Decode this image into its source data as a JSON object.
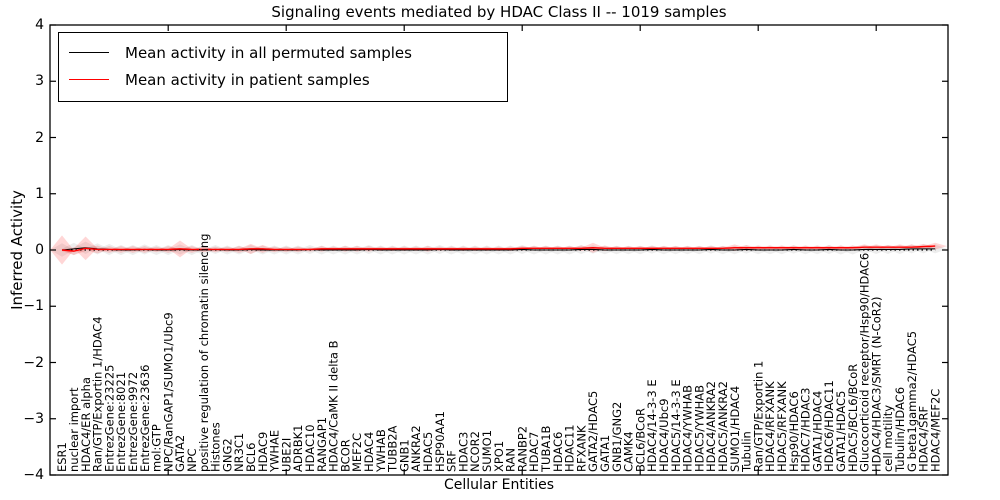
{
  "title": "Signaling events mediated by HDAC Class II -- 1019 samples",
  "legend": {
    "items": [
      {
        "label": "Mean activity in all permuted samples",
        "color": "#000000"
      },
      {
        "label": "Mean activity in patient samples",
        "color": "#ff0000"
      }
    ]
  },
  "axes": {
    "ylabel": "Inferred Activity",
    "xlabel": "Cellular Entities",
    "ytick_labels": [
      "4",
      "3",
      "2",
      "1",
      "0",
      "−1",
      "−2",
      "−3",
      "−4"
    ],
    "ytick_values": [
      4,
      3,
      2,
      1,
      0,
      -1,
      -2,
      -3,
      -4
    ]
  },
  "colors": {
    "permuted_line": "#000000",
    "patient_line": "#ff0000",
    "permuted_band": "rgba(0,0,0,0.07)",
    "patient_band": "rgba(255,0,0,0.16)",
    "frame": "#000000"
  },
  "chart_data": {
    "type": "line",
    "title": "Signaling events mediated by HDAC Class II -- 1019 samples",
    "xlabel": "Cellular Entities",
    "ylabel": "Inferred Activity",
    "ylim": [
      -4,
      4
    ],
    "grid": false,
    "legend_position": "upper left",
    "categories": [
      "ESR1",
      "nuclear import",
      "HDAC4/ER alpha",
      "Ran/GTP/Exportin 1/HDAC4",
      "EntrezGene:23225",
      "EntrezGene:8021",
      "EntrezGene:9972",
      "EntrezGene:23636",
      "mol:GTP",
      "NPC/RanGAP1/SUMO1/Ubc9",
      "GATA2",
      "NPC",
      "positive regulation of chromatin silencing",
      "Histones",
      "GNG2",
      "NR3C1",
      "BCL6",
      "HDAC9",
      "YWHAE",
      "UBE2I",
      "ADRBK1",
      "HDAC10",
      "RANGAP1",
      "HDAC4/CaMK II delta B",
      "BCOR",
      "MEF2C",
      "HDAC4",
      "YWHAB",
      "TUBB2A",
      "GNB1",
      "ANKRA2",
      "HDAC5",
      "HSP90AA1",
      "SRF",
      "HDAC3",
      "NCOR2",
      "SUMO1",
      "XPO1",
      "RAN",
      "RANBP2",
      "HDAC7",
      "TUBA1B",
      "HDAC6",
      "HDAC11",
      "RFXANK",
      "GATA2/HDAC5",
      "GATA1",
      "GNB1/GNG2",
      "CAMK4",
      "BCL6/BCoR",
      "HDAC4/14-3-3 E",
      "HDAC4/Ubc9",
      "HDAC5/14-3-3 E",
      "HDAC4/YWHAB",
      "HDAC5/YWHAB",
      "HDAC4/ANKRA2",
      "HDAC5/ANKRA2",
      "SUMO1/HDAC4",
      "Tubulin",
      "Ran/GTP/Exportin 1",
      "HDAC4/RFXANK",
      "HDAC5/RFXANK",
      "Hsp90/HDAC6",
      "HDAC7/HDAC3",
      "GATA1/HDAC4",
      "HDAC6/HDAC11",
      "GATA1/HDAC5",
      "HDAC5/BCL6/BCoR",
      "Glucocorticoid receptor/Hsp90/HDAC6",
      "HDAC4/HDAC3/SMRT (N-CoR2)",
      "cell motility",
      "Tubulin/HDAC6",
      "G beta1gamma2/HDAC5",
      "HDAC4/SRF",
      "HDAC4/MEF2C"
    ],
    "series": [
      {
        "name": "Mean activity in all permuted samples",
        "values": [
          0.0,
          0.02,
          0.04,
          0.02,
          0.01,
          0.0,
          0.0,
          0.01,
          0.0,
          0.0,
          0.01,
          0.0,
          0.0,
          0.01,
          0.0,
          0.0,
          0.01,
          0.0,
          0.0,
          0.0,
          0.0,
          0.01,
          0.0,
          0.0,
          0.0,
          0.0,
          0.01,
          0.0,
          0.0,
          0.0,
          0.0,
          0.0,
          0.01,
          0.0,
          0.0,
          0.0,
          0.0,
          0.0,
          0.0,
          0.01,
          0.0,
          0.0,
          0.0,
          0.0,
          0.01,
          0.01,
          0.0,
          0.0,
          0.0,
          0.0,
          0.01,
          0.0,
          0.0,
          0.0,
          0.0,
          0.01,
          0.0,
          0.0,
          0.01,
          0.0,
          0.0,
          0.0,
          0.01,
          0.0,
          0.0,
          0.01,
          0.0,
          0.0,
          0.01,
          0.01,
          0.01,
          0.01,
          0.02,
          0.02,
          0.02
        ],
        "band_halfwidth": [
          0.12,
          0.11,
          0.11,
          0.1,
          0.1,
          0.09,
          0.09,
          0.09,
          0.09,
          0.09,
          0.09,
          0.09,
          0.09,
          0.08,
          0.08,
          0.08,
          0.08,
          0.08,
          0.08,
          0.08,
          0.08,
          0.08,
          0.08,
          0.08,
          0.08,
          0.08,
          0.08,
          0.08,
          0.08,
          0.08,
          0.08,
          0.08,
          0.08,
          0.08,
          0.08,
          0.08,
          0.08,
          0.08,
          0.08,
          0.08,
          0.08,
          0.08,
          0.08,
          0.08,
          0.08,
          0.075,
          0.075,
          0.075,
          0.075,
          0.075,
          0.075,
          0.075,
          0.075,
          0.075,
          0.075,
          0.075,
          0.075,
          0.075,
          0.075,
          0.075,
          0.075,
          0.075,
          0.075,
          0.075,
          0.075,
          0.08,
          0.08,
          0.08,
          0.08,
          0.08,
          0.08,
          0.08,
          0.08,
          0.08,
          0.08
        ]
      },
      {
        "name": "Mean activity in patient samples",
        "values": [
          0.0,
          -0.02,
          0.03,
          0.01,
          0.01,
          0.01,
          0.01,
          0.01,
          0.01,
          0.01,
          0.02,
          0.01,
          0.01,
          0.01,
          0.01,
          0.01,
          0.02,
          0.02,
          0.01,
          0.01,
          0.01,
          0.01,
          0.02,
          0.02,
          0.02,
          0.02,
          0.02,
          0.02,
          0.02,
          0.02,
          0.02,
          0.02,
          0.02,
          0.02,
          0.02,
          0.02,
          0.02,
          0.02,
          0.02,
          0.03,
          0.03,
          0.03,
          0.03,
          0.03,
          0.03,
          0.04,
          0.03,
          0.03,
          0.03,
          0.03,
          0.03,
          0.03,
          0.03,
          0.03,
          0.03,
          0.03,
          0.03,
          0.04,
          0.04,
          0.04,
          0.04,
          0.04,
          0.04,
          0.04,
          0.04,
          0.04,
          0.04,
          0.04,
          0.05,
          0.05,
          0.05,
          0.05,
          0.05,
          0.06,
          0.07
        ],
        "band_halfwidth": [
          0.26,
          0.07,
          0.21,
          0.07,
          0.06,
          0.06,
          0.06,
          0.06,
          0.05,
          0.06,
          0.15,
          0.06,
          0.05,
          0.05,
          0.05,
          0.06,
          0.09,
          0.07,
          0.05,
          0.05,
          0.05,
          0.04,
          0.05,
          0.04,
          0.05,
          0.05,
          0.05,
          0.04,
          0.04,
          0.04,
          0.04,
          0.05,
          0.04,
          0.04,
          0.04,
          0.04,
          0.04,
          0.04,
          0.04,
          0.04,
          0.04,
          0.04,
          0.04,
          0.04,
          0.05,
          0.09,
          0.05,
          0.04,
          0.04,
          0.04,
          0.04,
          0.04,
          0.04,
          0.04,
          0.04,
          0.04,
          0.04,
          0.06,
          0.05,
          0.04,
          0.04,
          0.04,
          0.04,
          0.04,
          0.04,
          0.04,
          0.04,
          0.04,
          0.05,
          0.05,
          0.04,
          0.05,
          0.05,
          0.05,
          0.06
        ]
      }
    ]
  }
}
